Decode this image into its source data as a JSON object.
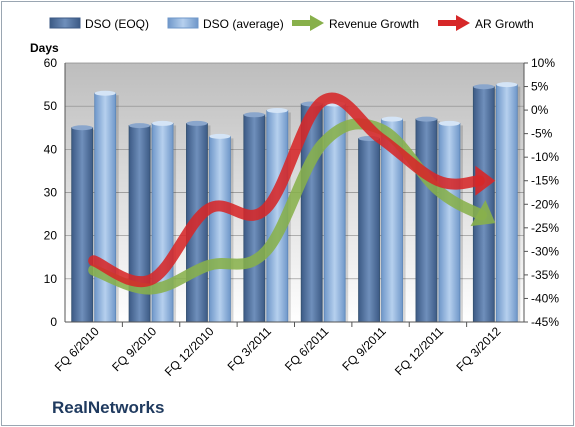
{
  "chart_data": {
    "type": "bar",
    "company": "RealNetworks",
    "ylabel_left": "Days",
    "categories": [
      "FQ 6/2010",
      "FQ 9/2010",
      "FQ 12/2010",
      "FQ 3/2011",
      "FQ 6/2011",
      "FQ 9/2011",
      "FQ 12/2011",
      "FQ 3/2012"
    ],
    "y_left": {
      "min": 0,
      "max": 60,
      "ticks": [
        "0",
        "10",
        "20",
        "30",
        "40",
        "50",
        "60"
      ]
    },
    "y_right": {
      "min": -45,
      "max": 10,
      "ticks": [
        "-45%",
        "-40%",
        "-35%",
        "-30%",
        "-25%",
        "-20%",
        "-15%",
        "-10%",
        "-5%",
        "0%",
        "5%",
        "10%"
      ]
    },
    "series": [
      {
        "name": "DSO (EOQ)",
        "kind": "bar",
        "axis": "left",
        "color": "#4f6f9a",
        "values": [
          45,
          45.5,
          46,
          48,
          50.5,
          42.5,
          47,
          54.5
        ]
      },
      {
        "name": "DSO (average)",
        "kind": "bar",
        "axis": "left",
        "color": "#8fb3dd",
        "values": [
          53,
          46,
          43,
          49,
          50.5,
          47,
          46,
          55
        ]
      },
      {
        "name": "Revenue Growth",
        "kind": "arrow-line",
        "axis": "right",
        "color": "#88b04b",
        "values": [
          -34,
          -38,
          -33,
          -30,
          -7,
          -4,
          -17,
          -24
        ]
      },
      {
        "name": "AR Growth",
        "kind": "arrow-line",
        "axis": "right",
        "color": "#d62728",
        "values": [
          -32,
          -36,
          -21,
          -21,
          2,
          -6,
          -15,
          -15
        ]
      }
    ],
    "grid": true,
    "legend": "top"
  }
}
